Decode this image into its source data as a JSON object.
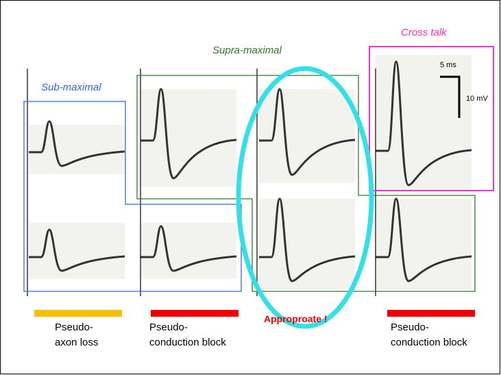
{
  "labels": {
    "cross_talk": "Cross talk",
    "supra_maximal": "Supra-maximal",
    "sub_maximal": "Sub-maximal",
    "scale_time": "5 ms",
    "scale_amp": "10 mV"
  },
  "columns": [
    {
      "line1": "Pseudo-",
      "line2": "axon loss"
    },
    {
      "line1": "Pseudo-",
      "line2": "conduction block"
    },
    {
      "line1": "Approproate !"
    },
    {
      "line1": "Pseudo-",
      "line2": "conduction block"
    }
  ]
}
